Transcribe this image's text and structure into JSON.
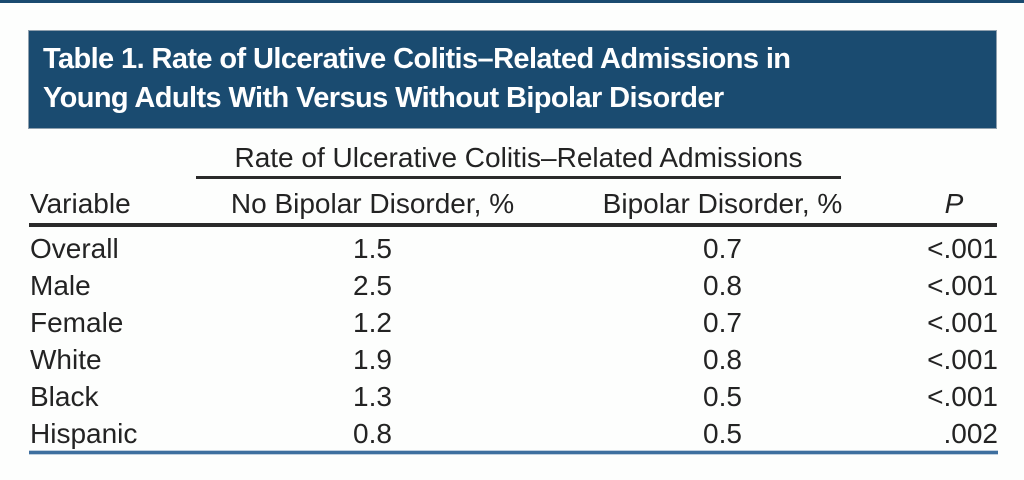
{
  "colors": {
    "banner-blue": "#1A4B70",
    "rule-dark": "#2A2A2A",
    "rule-blue": "#3E6F9F",
    "page-bg": "#FDFEFD",
    "title-text": "#FFFFFF",
    "body-text": "#232323"
  },
  "banner": {
    "title": "Table 1. Rate of Ulcerative Colitis–Related Admissions in Young Adults With Versus Without Bipolar Disorder",
    "title_lines": [
      "Table 1. Rate of Ulcerative Colitis–Related Admissions in",
      "Young Adults With Versus Without Bipolar Disorder"
    ]
  },
  "table": {
    "span_header": "Rate of Ulcerative Colitis–Related Admissions",
    "columns": {
      "variable": "Variable",
      "no_bipolar": "No Bipolar Disorder, %",
      "bipolar": "Bipolar Disorder, %",
      "p": "P"
    },
    "rows": [
      {
        "variable": "Overall",
        "no_bipolar": "1.5",
        "bipolar": "0.7",
        "p": "<.001"
      },
      {
        "variable": "Male",
        "no_bipolar": "2.5",
        "bipolar": "0.8",
        "p": "<.001"
      },
      {
        "variable": "Female",
        "no_bipolar": "1.2",
        "bipolar": "0.7",
        "p": "<.001"
      },
      {
        "variable": "White",
        "no_bipolar": "1.9",
        "bipolar": "0.8",
        "p": "<.001"
      },
      {
        "variable": "Black",
        "no_bipolar": "1.3",
        "bipolar": "0.5",
        "p": "<.001"
      },
      {
        "variable": "Hispanic",
        "no_bipolar": "0.8",
        "bipolar": "0.5",
        "p": ".002"
      }
    ]
  },
  "chart_data": {
    "type": "table",
    "title": "Table 1. Rate of Ulcerative Colitis–Related Admissions in Young Adults With Versus Without Bipolar Disorder",
    "column_group_header": "Rate of Ulcerative Colitis–Related Admissions",
    "columns": [
      "Variable",
      "No Bipolar Disorder, %",
      "Bipolar Disorder, %",
      "P"
    ],
    "rows": [
      [
        "Overall",
        1.5,
        0.7,
        "<.001"
      ],
      [
        "Male",
        2.5,
        0.8,
        "<.001"
      ],
      [
        "Female",
        1.2,
        0.7,
        "<.001"
      ],
      [
        "White",
        1.9,
        0.8,
        "<.001"
      ],
      [
        "Black",
        1.3,
        0.5,
        "<.001"
      ],
      [
        "Hispanic",
        0.8,
        0.5,
        ".002"
      ]
    ]
  }
}
